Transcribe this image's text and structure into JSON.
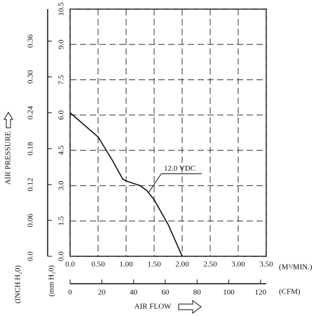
{
  "chart_data": {
    "type": "line",
    "x": [
      0,
      0.5,
      0.75,
      0.94,
      1.0,
      1.25,
      1.375,
      1.5,
      1.75,
      2.0
    ],
    "series": [
      {
        "name": "12.0 VDC",
        "color": "#111",
        "values": [
          6.1,
          5.07,
          4.1,
          3.28,
          3.2,
          3.0,
          2.78,
          2.4,
          1.35,
          0
        ]
      }
    ],
    "xlim": [
      0,
      3.5
    ],
    "xticks": [
      {
        "value": 0,
        "label": "0.0"
      },
      {
        "value": 0.5,
        "label": "0.50"
      },
      {
        "value": 1,
        "label": "1.00"
      },
      {
        "value": 1.5,
        "label": "1.50"
      },
      {
        "value": 2,
        "label": "2.00"
      },
      {
        "value": 2.5,
        "label": "2.50"
      },
      {
        "value": 3,
        "label": "3.00"
      },
      {
        "value": 3.5,
        "label": "3.50"
      }
    ],
    "x_label": "(M³/MIN.)",
    "x2lim": [
      0,
      123.6
    ],
    "x2ticks": [
      0,
      20,
      40,
      60,
      80,
      100,
      120
    ],
    "x2_label": "(CFM)",
    "x_title": "AIR FLOW",
    "ylim": [
      0,
      10.5
    ],
    "yticks": [
      {
        "value": 0,
        "label": "0.0"
      },
      1.5,
      {
        "value": 3,
        "label": "3.0"
      },
      4.5,
      {
        "value": 6,
        "label": "6.0"
      },
      7.5,
      {
        "value": 9,
        "label": "9.0"
      },
      10.5
    ],
    "y_label": "(mm H₂0)",
    "y2lim": [
      0,
      0.4134
    ],
    "y2ticks": [
      {
        "value": 0,
        "label": "0.0"
      },
      0.06,
      0.12,
      0.18,
      0.24,
      {
        "value": 0.3,
        "label": "0.30"
      },
      0.36
    ],
    "y2_label": "(INCH H₂0)",
    "y_title": "AIR PRESSURE",
    "grid": true
  }
}
